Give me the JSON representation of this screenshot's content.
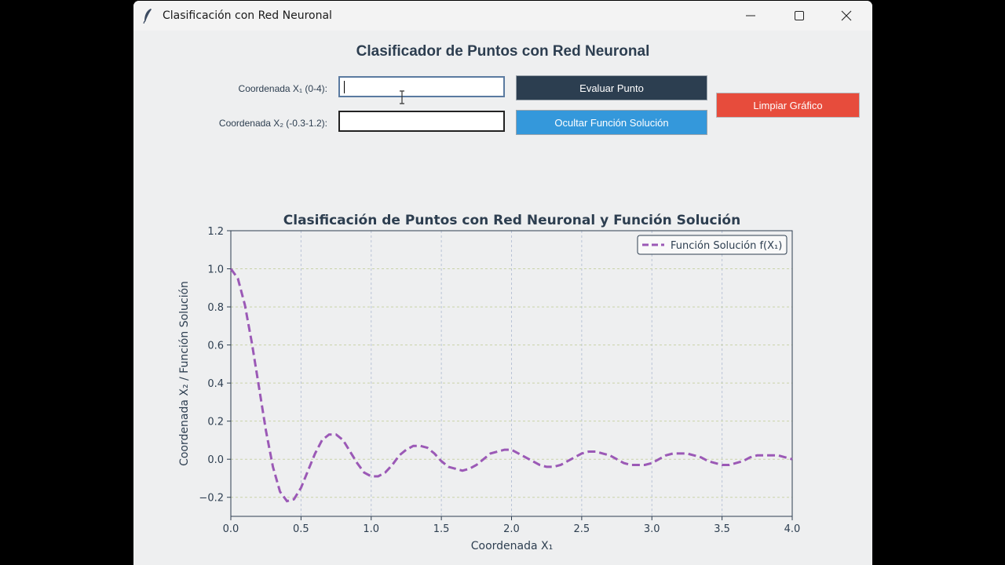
{
  "window": {
    "title": "Clasificación con Red Neuronal",
    "icon": "feather-icon"
  },
  "form": {
    "heading": "Clasificador de Puntos con Red Neuronal",
    "x1_label": "Coordenada X₁ (0-4):",
    "x2_label": "Coordenada X₂ (-0.3-1.2):",
    "x1_value": "",
    "x2_value": "",
    "evaluate_label": "Evaluar Punto",
    "toggle_solution_label": "Ocultar Función Solución",
    "clear_label": "Limpiar Gráfico"
  },
  "colors": {
    "dark_button": "#2c3e50",
    "blue_button": "#3498db",
    "red_button": "#e74c3c",
    "curve": "#9b59b6"
  },
  "chart_data": {
    "type": "line",
    "title": "Clasificación de Puntos con Red Neuronal y Función Solución",
    "xlabel": "Coordenada X₁",
    "ylabel": "Coordenada X₂ / Función Solución",
    "xlim": [
      0,
      4
    ],
    "ylim": [
      -0.3,
      1.2
    ],
    "xticks": [
      "0.0",
      "0.5",
      "1.0",
      "1.5",
      "2.0",
      "2.5",
      "3.0",
      "3.5",
      "4.0"
    ],
    "yticks": [
      "−0.2",
      "0.0",
      "0.2",
      "0.4",
      "0.6",
      "0.8",
      "1.0",
      "1.2"
    ],
    "grid": true,
    "legend_position": "top-right",
    "series": [
      {
        "name": "Función Solución f(X₁)",
        "style": "dashed",
        "x": [
          0.0,
          0.05,
          0.1,
          0.15,
          0.2,
          0.25,
          0.3,
          0.35,
          0.4,
          0.45,
          0.5,
          0.55,
          0.6,
          0.65,
          0.7,
          0.75,
          0.8,
          0.85,
          0.9,
          0.95,
          1.0,
          1.05,
          1.1,
          1.15,
          1.2,
          1.25,
          1.3,
          1.35,
          1.4,
          1.45,
          1.5,
          1.55,
          1.6,
          1.65,
          1.7,
          1.75,
          1.8,
          1.85,
          1.9,
          1.95,
          2.0,
          2.05,
          2.1,
          2.15,
          2.2,
          2.25,
          2.3,
          2.35,
          2.4,
          2.45,
          2.5,
          2.55,
          2.6,
          2.65,
          2.7,
          2.75,
          2.8,
          2.85,
          2.9,
          2.95,
          3.0,
          3.05,
          3.1,
          3.15,
          3.2,
          3.25,
          3.3,
          3.35,
          3.4,
          3.45,
          3.5,
          3.55,
          3.6,
          3.65,
          3.7,
          3.75,
          3.8,
          3.85,
          3.9,
          3.95,
          4.0
        ],
        "y": [
          1.0,
          0.95,
          0.81,
          0.61,
          0.38,
          0.15,
          -0.04,
          -0.17,
          -0.22,
          -0.21,
          -0.15,
          -0.06,
          0.03,
          0.1,
          0.13,
          0.13,
          0.1,
          0.04,
          -0.02,
          -0.07,
          -0.09,
          -0.09,
          -0.07,
          -0.03,
          0.02,
          0.05,
          0.07,
          0.07,
          0.06,
          0.03,
          -0.01,
          -0.04,
          -0.05,
          -0.06,
          -0.05,
          -0.03,
          0.0,
          0.03,
          0.04,
          0.05,
          0.05,
          0.03,
          0.01,
          -0.01,
          -0.03,
          -0.04,
          -0.04,
          -0.03,
          -0.01,
          0.01,
          0.03,
          0.04,
          0.04,
          0.03,
          0.02,
          0.0,
          -0.02,
          -0.03,
          -0.03,
          -0.03,
          -0.02,
          0.0,
          0.02,
          0.03,
          0.03,
          0.03,
          0.02,
          0.01,
          -0.01,
          -0.02,
          -0.03,
          -0.03,
          -0.02,
          -0.01,
          0.01,
          0.02,
          0.02,
          0.02,
          0.02,
          0.01,
          0.0
        ]
      }
    ]
  }
}
